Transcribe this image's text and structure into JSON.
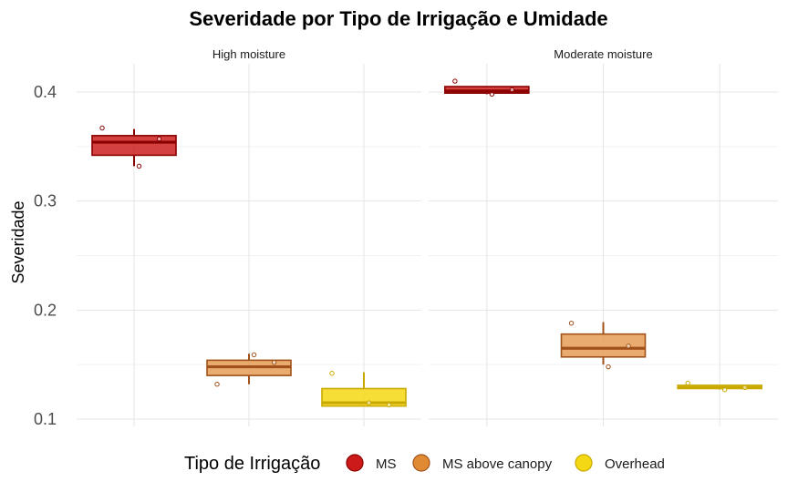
{
  "chart_data": {
    "type": "box",
    "title": "Severidade por Tipo de Irrigação e Umidade",
    "ylabel": "Severidade",
    "xlabel": "",
    "ylim": [
      0.088,
      0.426
    ],
    "yticks": [
      0.1,
      0.2,
      0.3,
      0.4
    ],
    "ytick_labels": [
      "0.1",
      "0.2",
      "0.3",
      "0.4"
    ],
    "grid": true,
    "legend": {
      "title": "Tipo de Irrigação",
      "position": "bottom",
      "items": [
        {
          "label": "MS",
          "fill": "#cc1a1a",
          "stroke": "#8b0000"
        },
        {
          "label": "MS above canopy",
          "fill": "#e08a33",
          "stroke": "#a0521a"
        },
        {
          "label": "Overhead",
          "fill": "#f5d814",
          "stroke": "#c9a800"
        }
      ]
    },
    "categories": [
      "MS",
      "MS above canopy",
      "Overhead"
    ],
    "facets": [
      {
        "label": "High moisture",
        "boxes": [
          {
            "category": "MS",
            "fill": "#cc2020",
            "stroke": "#8b0000",
            "whisker_low": 0.332,
            "q1": 0.342,
            "median": 0.354,
            "q3": 0.36,
            "whisker_high": 0.366,
            "points": [
              0.367,
              0.332,
              0.357
            ]
          },
          {
            "category": "MS above canopy",
            "fill": "#e59c55",
            "stroke": "#a0521a",
            "whisker_low": 0.132,
            "q1": 0.14,
            "median": 0.148,
            "q3": 0.154,
            "whisker_high": 0.16,
            "points": [
              0.132,
              0.159,
              0.152
            ]
          },
          {
            "category": "Overhead",
            "fill": "#f5d814",
            "stroke": "#c9a800",
            "whisker_low": 0.112,
            "q1": 0.112,
            "median": 0.115,
            "q3": 0.128,
            "whisker_high": 0.143,
            "points": [
              0.142,
              0.115,
              0.113
            ]
          }
        ]
      },
      {
        "label": "Moderate moisture",
        "boxes": [
          {
            "category": "MS",
            "fill": "#cc2020",
            "stroke": "#8b0000",
            "whisker_low": 0.398,
            "q1": 0.399,
            "median": 0.401,
            "q3": 0.405,
            "whisker_high": 0.405,
            "points": [
              0.41,
              0.398,
              0.402
            ]
          },
          {
            "category": "MS above canopy",
            "fill": "#e59c55",
            "stroke": "#a0521a",
            "whisker_low": 0.15,
            "q1": 0.157,
            "median": 0.165,
            "q3": 0.178,
            "whisker_high": 0.189,
            "points": [
              0.188,
              0.148,
              0.167
            ]
          },
          {
            "category": "Overhead",
            "fill": "#f5d814",
            "stroke": "#c9a800",
            "whisker_low": 0.127,
            "q1": 0.128,
            "median": 0.129,
            "q3": 0.131,
            "whisker_high": 0.131,
            "points": [
              0.133,
              0.127,
              0.129
            ]
          }
        ]
      }
    ]
  }
}
